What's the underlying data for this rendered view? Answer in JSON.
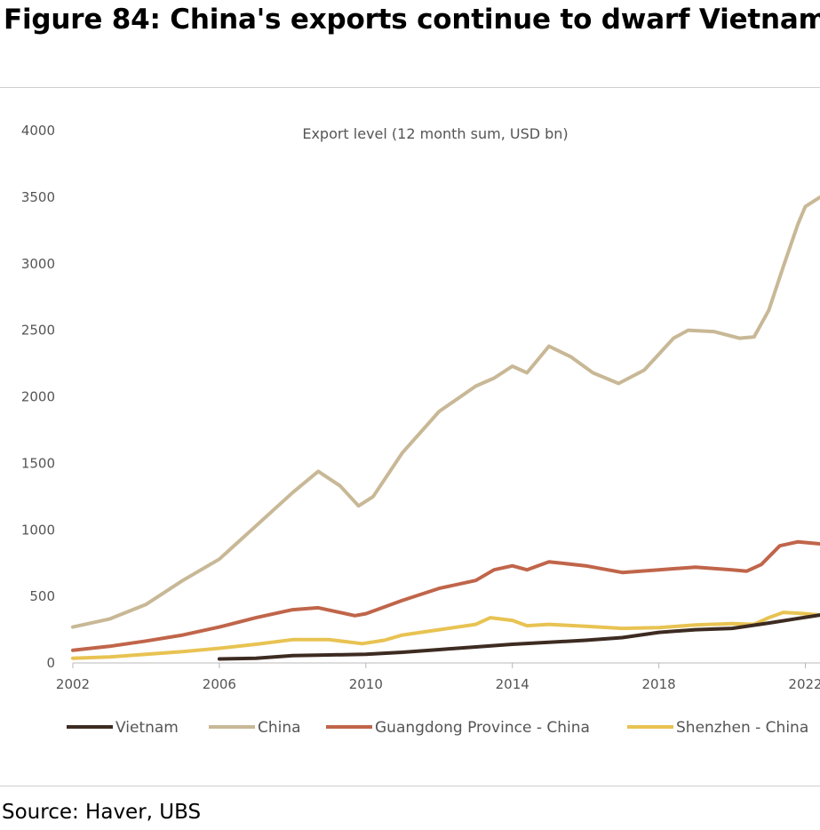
{
  "figure": {
    "title": "Figure 84: China's exports continue to dwarf Vietnam's",
    "source": "Source: Haver, UBS"
  },
  "chart_data": {
    "type": "line",
    "title": "Export level (12 month sum, USD bn)",
    "xlabel": "",
    "ylabel": "",
    "xlim": [
      2002,
      2022.4
    ],
    "ylim": [
      0,
      4000
    ],
    "x_ticks": [
      2002,
      2006,
      2010,
      2014,
      2018,
      2022
    ],
    "x_tick_labels": [
      "2002",
      "2006",
      "2010",
      "2014",
      "2018",
      "2022"
    ],
    "y_ticks": [
      0,
      500,
      1000,
      1500,
      2000,
      2500,
      3000,
      3500,
      4000
    ],
    "y_tick_labels": [
      "0",
      "500",
      "1000",
      "1500",
      "2000",
      "2500",
      "3000",
      "3500",
      "4000"
    ],
    "grid": false,
    "legend_position": "bottom",
    "series": [
      {
        "name": "Vietnam",
        "color": "#3d2b22",
        "points": [
          [
            2006,
            30
          ],
          [
            2007,
            35
          ],
          [
            2008,
            55
          ],
          [
            2009,
            60
          ],
          [
            2010,
            65
          ],
          [
            2011,
            80
          ],
          [
            2012,
            100
          ],
          [
            2013,
            120
          ],
          [
            2014,
            140
          ],
          [
            2015,
            155
          ],
          [
            2016,
            170
          ],
          [
            2017,
            190
          ],
          [
            2018,
            230
          ],
          [
            2019,
            250
          ],
          [
            2020,
            260
          ],
          [
            2021,
            300
          ],
          [
            2022.4,
            360
          ]
        ]
      },
      {
        "name": "China",
        "color": "#c8b896",
        "points": [
          [
            2002,
            270
          ],
          [
            2003,
            330
          ],
          [
            2004,
            440
          ],
          [
            2005,
            620
          ],
          [
            2006,
            780
          ],
          [
            2007,
            1030
          ],
          [
            2008,
            1280
          ],
          [
            2008.7,
            1440
          ],
          [
            2009.3,
            1330
          ],
          [
            2009.8,
            1180
          ],
          [
            2010.2,
            1250
          ],
          [
            2011,
            1580
          ],
          [
            2012,
            1890
          ],
          [
            2013,
            2080
          ],
          [
            2013.5,
            2140
          ],
          [
            2014,
            2230
          ],
          [
            2014.4,
            2180
          ],
          [
            2015,
            2380
          ],
          [
            2015.6,
            2300
          ],
          [
            2016.2,
            2180
          ],
          [
            2016.9,
            2100
          ],
          [
            2017.6,
            2200
          ],
          [
            2018.4,
            2440
          ],
          [
            2018.8,
            2500
          ],
          [
            2019.5,
            2490
          ],
          [
            2020.2,
            2440
          ],
          [
            2020.6,
            2450
          ],
          [
            2021,
            2650
          ],
          [
            2021.4,
            2980
          ],
          [
            2021.8,
            3300
          ],
          [
            2022,
            3430
          ],
          [
            2022.4,
            3500
          ]
        ]
      },
      {
        "name": "Guangdong Province - China",
        "color": "#c0654a",
        "points": [
          [
            2002,
            95
          ],
          [
            2003,
            125
          ],
          [
            2004,
            165
          ],
          [
            2005,
            210
          ],
          [
            2006,
            270
          ],
          [
            2007,
            340
          ],
          [
            2008,
            400
          ],
          [
            2008.7,
            415
          ],
          [
            2009.7,
            355
          ],
          [
            2010,
            370
          ],
          [
            2011,
            470
          ],
          [
            2012,
            560
          ],
          [
            2013,
            620
          ],
          [
            2013.5,
            700
          ],
          [
            2014,
            730
          ],
          [
            2014.4,
            700
          ],
          [
            2015,
            760
          ],
          [
            2016,
            730
          ],
          [
            2017,
            680
          ],
          [
            2018,
            700
          ],
          [
            2019,
            720
          ],
          [
            2020,
            700
          ],
          [
            2020.4,
            690
          ],
          [
            2020.8,
            740
          ],
          [
            2021.3,
            880
          ],
          [
            2021.8,
            910
          ],
          [
            2022.4,
            895
          ]
        ]
      },
      {
        "name": "Shenzhen - China",
        "color": "#e8c352",
        "points": [
          [
            2002,
            35
          ],
          [
            2003,
            45
          ],
          [
            2004,
            65
          ],
          [
            2005,
            85
          ],
          [
            2006,
            110
          ],
          [
            2007,
            140
          ],
          [
            2008,
            175
          ],
          [
            2009,
            175
          ],
          [
            2009.9,
            145
          ],
          [
            2010.5,
            170
          ],
          [
            2011,
            210
          ],
          [
            2012,
            250
          ],
          [
            2013,
            290
          ],
          [
            2013.4,
            340
          ],
          [
            2014,
            320
          ],
          [
            2014.4,
            280
          ],
          [
            2015,
            290
          ],
          [
            2016,
            275
          ],
          [
            2017,
            260
          ],
          [
            2018,
            265
          ],
          [
            2019,
            285
          ],
          [
            2020,
            295
          ],
          [
            2020.6,
            290
          ],
          [
            2021,
            340
          ],
          [
            2021.4,
            380
          ],
          [
            2022,
            370
          ],
          [
            2022.4,
            360
          ]
        ]
      }
    ]
  }
}
